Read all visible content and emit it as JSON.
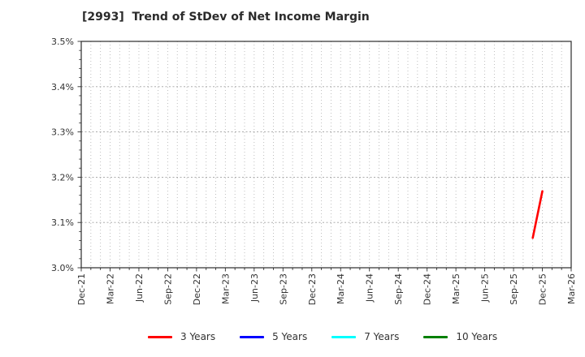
{
  "chart_data": {
    "type": "line",
    "title": "[2993]  Trend of StDev of Net Income Margin",
    "xlabel": "",
    "ylabel": "",
    "ylim": [
      3.0,
      3.5
    ],
    "y_tick_format": "percent",
    "y_ticks": [
      {
        "value": 3.0,
        "label": "3.0%"
      },
      {
        "value": 3.1,
        "label": "3.1%"
      },
      {
        "value": 3.2,
        "label": "3.2%"
      },
      {
        "value": 3.3,
        "label": "3.3%"
      },
      {
        "value": 3.4,
        "label": "3.4%"
      },
      {
        "value": 3.5,
        "label": "3.5%"
      }
    ],
    "y_minor_step": 0.02,
    "x_ticks": [
      "Dec-21",
      "Mar-22",
      "Jun-22",
      "Sep-22",
      "Dec-22",
      "Mar-23",
      "Jun-23",
      "Sep-23",
      "Dec-23",
      "Mar-24",
      "Jun-24",
      "Sep-24",
      "Dec-24",
      "Mar-25",
      "Jun-25",
      "Sep-25",
      "Dec-25",
      "Mar-26"
    ],
    "x_minor_step_months": 1,
    "grid": true,
    "legend_position": "bottom",
    "legend": [
      {
        "name": "3 Years",
        "color": "#ff0000"
      },
      {
        "name": "5 Years",
        "color": "#0000ff"
      },
      {
        "name": "7 Years",
        "color": "#00ffff"
      },
      {
        "name": "10 Years",
        "color": "#008000"
      }
    ],
    "series": [
      {
        "name": "3 Years",
        "color": "#ff0000",
        "points": [
          {
            "x": "Nov-25",
            "y": 3.066
          },
          {
            "x": "Dec-25",
            "y": 3.169
          }
        ]
      },
      {
        "name": "5 Years",
        "color": "#0000ff",
        "points": []
      },
      {
        "name": "7 Years",
        "color": "#00ffff",
        "points": []
      },
      {
        "name": "10 Years",
        "color": "#008000",
        "points": []
      }
    ],
    "colors": {
      "spine": "#2b2b2b",
      "grid_vertical": "#b8b8b8",
      "grid_horizontal": "#a0a0a0",
      "tick_label": "#333333"
    }
  }
}
